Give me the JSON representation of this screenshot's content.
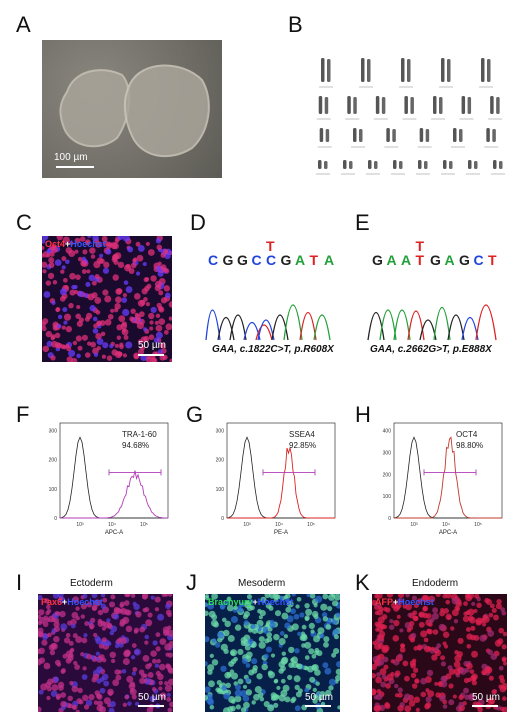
{
  "panels": {
    "A": {
      "letter": "A",
      "scale": "100 µm"
    },
    "B": {
      "letter": "B"
    },
    "C": {
      "letter": "C",
      "stain_a": "Oct4",
      "plus": "+",
      "stain_b": "Hoechst",
      "scale": "50 µm",
      "color_a": "#ff3344",
      "color_b": "#3355ff"
    },
    "D": {
      "letter": "D",
      "bases": [
        "C",
        "G",
        "G",
        "C",
        "C",
        "G",
        "A",
        "T",
        "A"
      ],
      "mut": "T",
      "caption_gene": "GAA",
      "caption_rest": ", c.1822C>T, p.R608X"
    },
    "E": {
      "letter": "E",
      "bases": [
        "G",
        "A",
        "A",
        "T",
        "G",
        "A",
        "G",
        "C",
        "T"
      ],
      "mut": "T",
      "caption_gene": "GAA",
      "caption_rest": ", c.2662G>T, p.E888X"
    },
    "F": {
      "letter": "F",
      "marker": "TRA-1-60",
      "percent": "94.68%",
      "xlabel": "APC-A",
      "color": "#b03cb8"
    },
    "G": {
      "letter": "G",
      "marker": "SSEA4",
      "percent": "92.85%",
      "xlabel": "PE-A",
      "color": "#d22"
    },
    "H": {
      "letter": "H",
      "marker": "OCT4",
      "percent": "98.80%",
      "xlabel": "APC-A",
      "color": "#c0392b"
    },
    "I": {
      "letter": "I",
      "title": "Ectoderm",
      "stain_a": "Pax6",
      "plus": "+",
      "stain_b": "Hoechst",
      "scale": "50 µm"
    },
    "J": {
      "letter": "J",
      "title": "Mesoderm",
      "stain_a": "Brachyury",
      "plus": "+",
      "stain_b": "Hoechst",
      "scale": "50 µm"
    },
    "K": {
      "letter": "K",
      "title": "Endoderm",
      "stain_a": "AFP",
      "plus": "+",
      "stain_b": "Hoechst",
      "scale": "50 µm"
    }
  },
  "base_colors": {
    "A": "#22a03a",
    "C": "#2244dd",
    "G": "#222222",
    "T": "#dd2222"
  },
  "flow_ticks": {
    "labels": [
      "10³",
      "10⁴",
      "10⁵"
    ]
  },
  "flow_yticks": {
    "F": [
      "0",
      "100",
      "200",
      "300"
    ],
    "G": [
      "0",
      "100",
      "200",
      "300"
    ],
    "H": [
      "0",
      "100",
      "200",
      "300",
      "400"
    ]
  }
}
